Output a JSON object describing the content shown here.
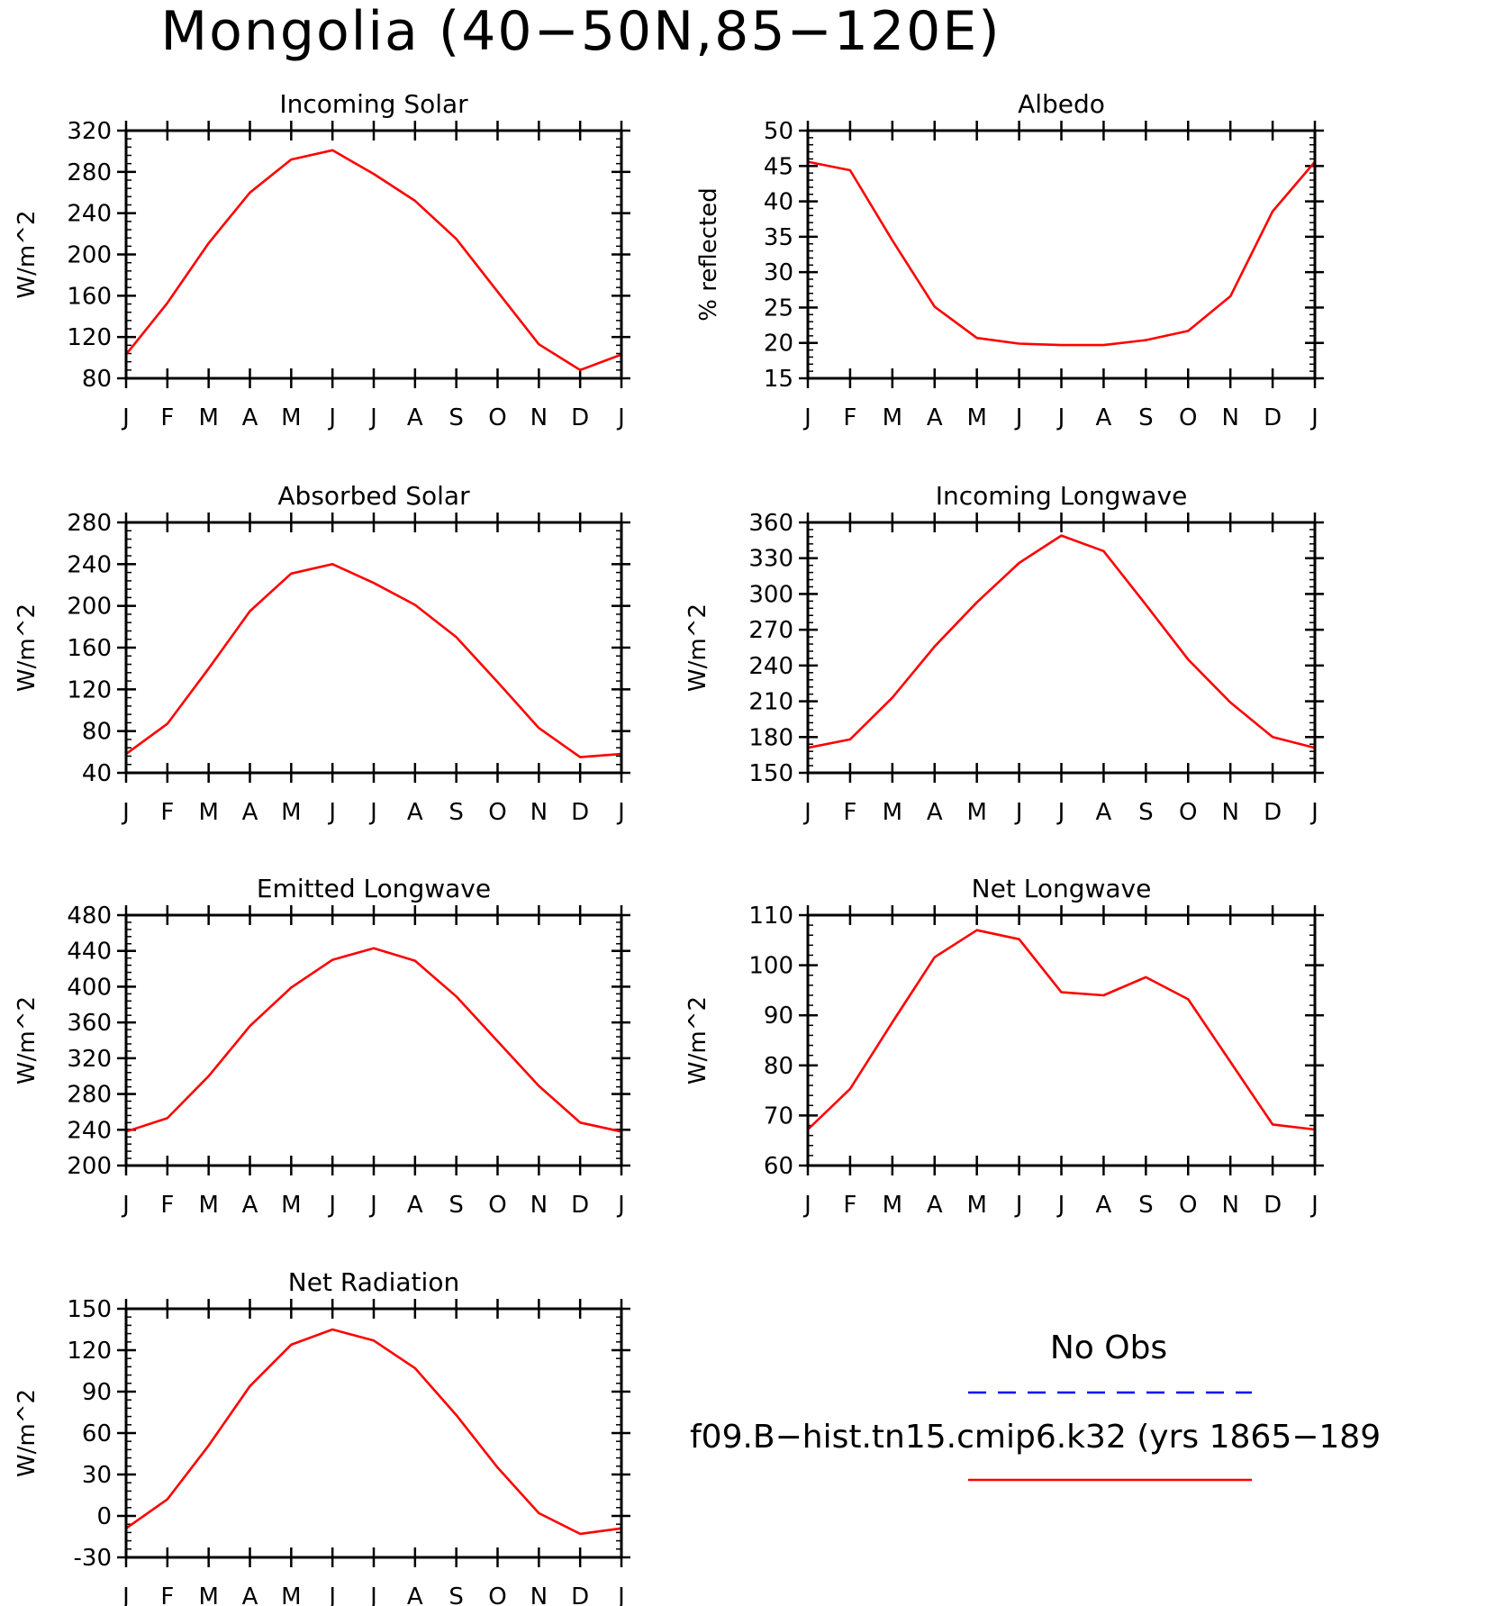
{
  "page_title": "Mongolia (40−50N,85−120E)",
  "legend": {
    "obs_label": "No Obs",
    "obs_color": "#0000ff",
    "model_label": "f09.B−hist.tn15.cmip6.k32 (yrs 1865−189",
    "model_color": "#ff0000"
  },
  "chart_data": [
    {
      "type": "line",
      "title": "Incoming Solar",
      "ylabel": "W/m^2",
      "categories": [
        "J",
        "F",
        "M",
        "A",
        "M",
        "J",
        "J",
        "A",
        "S",
        "O",
        "N",
        "D",
        "J"
      ],
      "ylim": [
        80,
        320
      ],
      "yticks": [
        80,
        120,
        160,
        200,
        240,
        280,
        320
      ],
      "series": [
        {
          "values": [
            103,
            153,
            211,
            260,
            292,
            301,
            278,
            252,
            215,
            164,
            113,
            88,
            103
          ]
        }
      ]
    },
    {
      "type": "line",
      "title": "Albedo",
      "ylabel": "% reflected",
      "categories": [
        "J",
        "F",
        "M",
        "A",
        "M",
        "J",
        "J",
        "A",
        "S",
        "O",
        "N",
        "D",
        "J"
      ],
      "ylim": [
        15,
        50
      ],
      "yticks": [
        15,
        20,
        25,
        30,
        35,
        40,
        45,
        50
      ],
      "series": [
        {
          "values": [
            45.6,
            44.4,
            34.5,
            25.1,
            20.7,
            19.9,
            19.7,
            19.7,
            20.4,
            21.7,
            26.6,
            38.6,
            45.6
          ]
        }
      ]
    },
    {
      "type": "line",
      "title": "Absorbed Solar",
      "ylabel": "W/m^2",
      "categories": [
        "J",
        "F",
        "M",
        "A",
        "M",
        "J",
        "J",
        "A",
        "S",
        "O",
        "N",
        "D",
        "J"
      ],
      "ylim": [
        40,
        280
      ],
      "yticks": [
        40,
        80,
        120,
        160,
        200,
        240,
        280
      ],
      "series": [
        {
          "values": [
            58,
            87,
            140,
            195,
            231,
            240,
            222,
            201,
            170,
            127,
            83,
            55,
            58
          ]
        }
      ]
    },
    {
      "type": "line",
      "title": "Incoming Longwave",
      "ylabel": "W/m^2",
      "categories": [
        "J",
        "F",
        "M",
        "A",
        "M",
        "J",
        "J",
        "A",
        "S",
        "O",
        "N",
        "D",
        "J"
      ],
      "ylim": [
        150,
        360
      ],
      "yticks": [
        150,
        180,
        210,
        240,
        270,
        300,
        330,
        360
      ],
      "series": [
        {
          "values": [
            171,
            178,
            213,
            256,
            293,
            326,
            349,
            336,
            291,
            245,
            209,
            180,
            171
          ]
        }
      ]
    },
    {
      "type": "line",
      "title": "Emitted Longwave",
      "ylabel": "W/m^2",
      "categories": [
        "J",
        "F",
        "M",
        "A",
        "M",
        "J",
        "J",
        "A",
        "S",
        "O",
        "N",
        "D",
        "J"
      ],
      "ylim": [
        200,
        480
      ],
      "yticks": [
        200,
        240,
        280,
        320,
        360,
        400,
        440,
        480
      ],
      "series": [
        {
          "values": [
            238,
            253,
            300,
            356,
            399,
            430,
            443,
            429,
            389,
            339,
            289,
            248,
            238
          ]
        }
      ]
    },
    {
      "type": "line",
      "title": "Net Longwave",
      "ylabel": "W/m^2",
      "categories": [
        "J",
        "F",
        "M",
        "A",
        "M",
        "J",
        "J",
        "A",
        "S",
        "O",
        "N",
        "D",
        "J"
      ],
      "ylim": [
        60,
        110
      ],
      "yticks": [
        60,
        70,
        80,
        90,
        100,
        110
      ],
      "series": [
        {
          "values": [
            67.2,
            75.3,
            88.6,
            101.6,
            107.0,
            105.2,
            94.6,
            94.0,
            97.6,
            93.2,
            80.7,
            68.2,
            67.2
          ]
        }
      ]
    },
    {
      "type": "line",
      "title": "Net Radiation",
      "ylabel": "W/m^2",
      "categories": [
        "J",
        "F",
        "M",
        "A",
        "M",
        "J",
        "J",
        "A",
        "S",
        "O",
        "N",
        "D",
        "J"
      ],
      "ylim": [
        -30,
        150
      ],
      "yticks": [
        -30,
        0,
        30,
        60,
        90,
        120,
        150
      ],
      "series": [
        {
          "values": [
            -9,
            12,
            51,
            94,
            124,
            135,
            127,
            107,
            73,
            35,
            2,
            -13,
            -9
          ]
        }
      ]
    }
  ]
}
